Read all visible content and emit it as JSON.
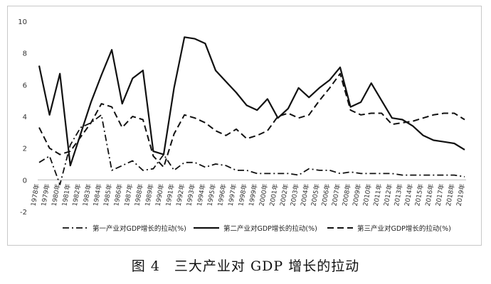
{
  "caption": "图 4　三大产业对 GDP 增长的拉动",
  "chart_data": {
    "type": "line",
    "title": "",
    "xlabel": "",
    "ylabel": "",
    "ylim": [
      -2,
      10
    ],
    "yticks": [
      -2,
      0,
      2,
      4,
      6,
      8,
      10
    ],
    "grid": false,
    "legend_position": "bottom",
    "categories": [
      "1978年",
      "1979年",
      "1980年",
      "1981年",
      "1982年",
      "1983年",
      "1984年",
      "1985年",
      "1986年",
      "1987年",
      "1988年",
      "1989年",
      "1990年",
      "1991年",
      "1992年",
      "1993年",
      "1994年",
      "1995年",
      "1996年",
      "1997年",
      "1998年",
      "1999年",
      "2000年",
      "2001年",
      "2002年",
      "2003年",
      "2004年",
      "2005年",
      "2006年",
      "2007年",
      "2008年",
      "2009年",
      "2010年",
      "2011年",
      "2012年",
      "2013年",
      "2014年",
      "2015年",
      "2016年",
      "2017年",
      "2018年",
      "2019年"
    ],
    "series": [
      {
        "name": "第一产业对GDP增长的拉动(%)",
        "style": "dashdot",
        "values": [
          1.1,
          1.5,
          -0.3,
          2.2,
          3.3,
          3.6,
          4.1,
          0.6,
          0.9,
          1.2,
          0.6,
          0.7,
          1.6,
          0.6,
          1.1,
          1.1,
          0.8,
          1.0,
          0.9,
          0.6,
          0.6,
          0.4,
          0.4,
          0.4,
          0.4,
          0.3,
          0.7,
          0.6,
          0.6,
          0.4,
          0.5,
          0.4,
          0.4,
          0.4,
          0.4,
          0.3,
          0.3,
          0.3,
          0.3,
          0.3,
          0.3,
          0.2
        ]
      },
      {
        "name": "第二产业对GDP增长的拉动(%)",
        "style": "solid",
        "values": [
          7.2,
          4.1,
          6.7,
          0.9,
          2.9,
          4.9,
          6.6,
          8.2,
          4.8,
          6.4,
          6.9,
          1.8,
          1.6,
          5.8,
          9.0,
          8.9,
          8.6,
          6.9,
          6.2,
          5.5,
          4.7,
          4.4,
          5.1,
          3.9,
          4.5,
          5.8,
          5.2,
          5.8,
          6.3,
          7.1,
          4.6,
          4.9,
          6.1,
          5.0,
          3.9,
          3.8,
          3.4,
          2.8,
          2.5,
          2.4,
          2.3,
          1.9
        ]
      },
      {
        "name": "第三产业对GDP增长的拉动(%)",
        "style": "dashed",
        "values": [
          3.3,
          2.0,
          1.6,
          1.8,
          2.7,
          3.6,
          4.8,
          4.6,
          3.3,
          4.0,
          3.8,
          1.5,
          0.8,
          2.9,
          4.1,
          3.9,
          3.6,
          3.1,
          2.8,
          3.2,
          2.6,
          2.8,
          3.1,
          4.0,
          4.2,
          3.9,
          4.1,
          5.0,
          5.8,
          6.7,
          4.4,
          4.1,
          4.2,
          4.2,
          3.5,
          3.6,
          3.7,
          3.9,
          4.1,
          4.2,
          4.2,
          3.8
        ]
      }
    ]
  }
}
